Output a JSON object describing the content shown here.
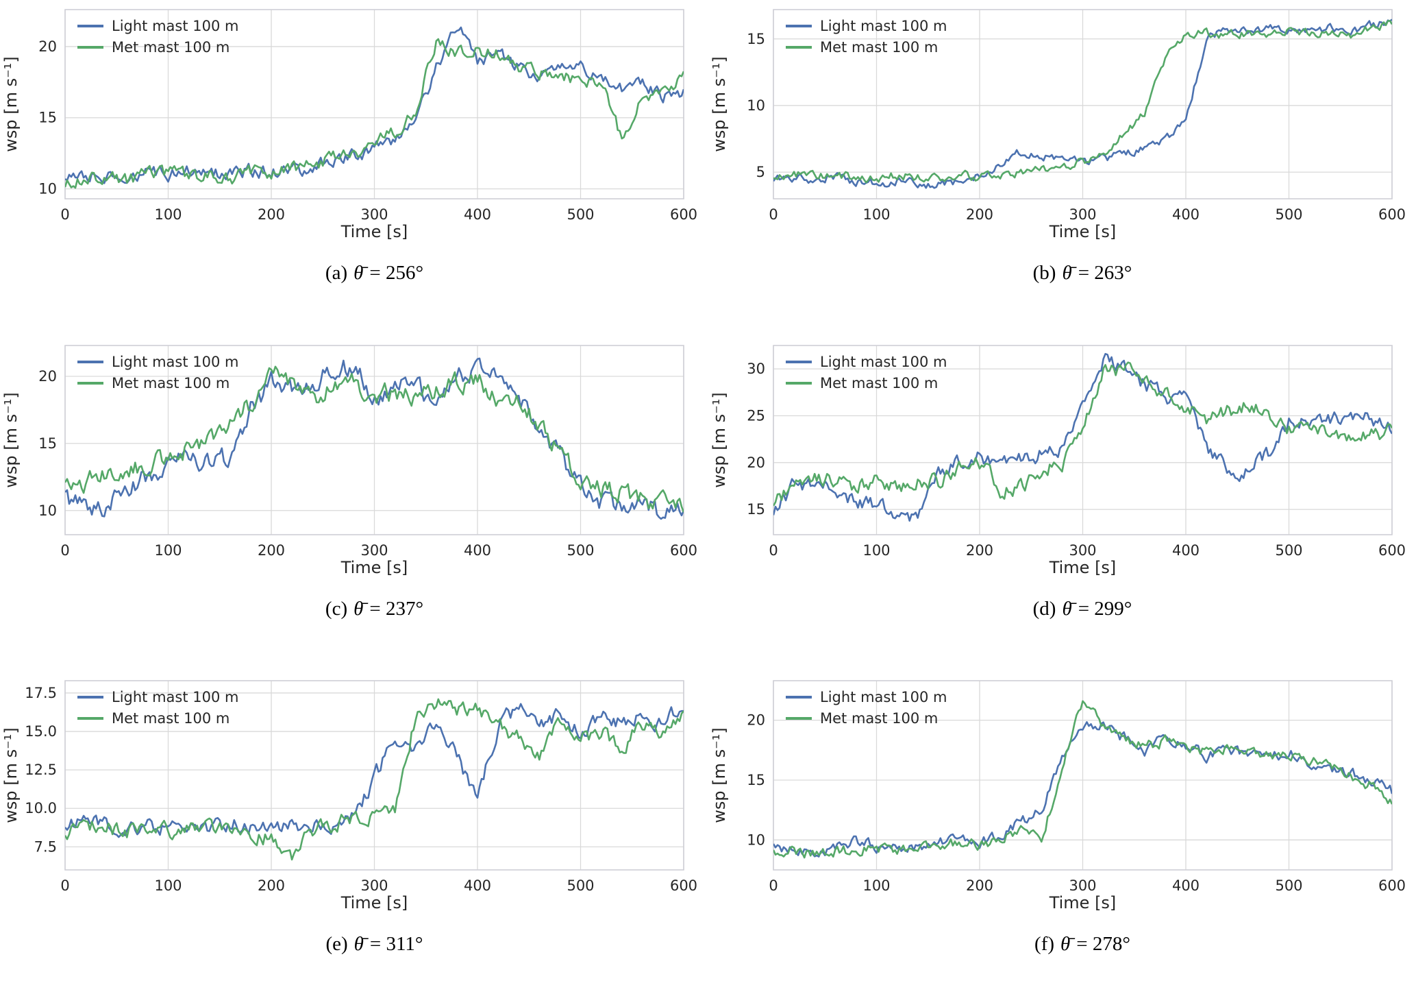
{
  "style": {
    "series_blue": "#4C72B0",
    "series_green": "#55A868",
    "grid_color": "#d9d9d9",
    "axis_color": "#cfcfd6",
    "text_color": "#262626"
  },
  "chart_data": [
    {
      "type": "line",
      "caption": {
        "label": "(a)",
        "symbol": "θ̄",
        "value": "= 256°"
      },
      "xlabel": "Time [s]",
      "ylabel": "wsp [m s⁻¹]",
      "xlim": [
        0,
        600
      ],
      "ylim": [
        9.3,
        22.6
      ],
      "xticks": [
        0,
        100,
        200,
        300,
        400,
        500,
        600
      ],
      "yticks": [
        10,
        15,
        20
      ],
      "ytick_labels": [
        "10",
        "15",
        "20"
      ],
      "legend_position": "upper left",
      "grid": true,
      "noise": 0.5,
      "x": [
        0,
        20,
        40,
        60,
        80,
        100,
        120,
        140,
        160,
        180,
        200,
        220,
        240,
        260,
        280,
        300,
        320,
        340,
        360,
        380,
        400,
        420,
        440,
        460,
        480,
        500,
        520,
        540,
        560,
        580,
        600
      ],
      "series": [
        {
          "name": "Light mast 100 m",
          "color": "#4C72B0",
          "values": [
            10.8,
            11.0,
            10.9,
            11.0,
            11.2,
            11.0,
            11.3,
            11.2,
            11.1,
            11.3,
            11.2,
            11.3,
            11.5,
            12.0,
            12.3,
            12.8,
            13.5,
            14.8,
            18.5,
            21.5,
            19.0,
            19.5,
            18.5,
            18.0,
            18.8,
            18.5,
            17.5,
            17.0,
            17.5,
            16.5,
            16.8
          ]
        },
        {
          "name": "Met mast 100 m",
          "color": "#55A868",
          "values": [
            10.5,
            10.7,
            10.8,
            10.6,
            11.0,
            11.1,
            10.9,
            11.0,
            10.7,
            11.2,
            11.1,
            11.4,
            11.6,
            12.2,
            12.5,
            13.2,
            14.0,
            15.5,
            20.5,
            19.5,
            19.8,
            19.5,
            18.5,
            18.2,
            18.0,
            17.5,
            17.8,
            13.5,
            16.5,
            17.0,
            17.8
          ]
        }
      ]
    },
    {
      "type": "line",
      "caption": {
        "label": "(b)",
        "symbol": "θ̄",
        "value": "= 263°"
      },
      "xlabel": "Time [s]",
      "ylabel": "wsp [m s⁻¹]",
      "xlim": [
        0,
        600
      ],
      "ylim": [
        3.0,
        17.2
      ],
      "xticks": [
        0,
        100,
        200,
        300,
        400,
        500,
        600
      ],
      "yticks": [
        5,
        10,
        15
      ],
      "ytick_labels": [
        "5",
        "10",
        "15"
      ],
      "legend_position": "upper left",
      "grid": true,
      "noise": 0.35,
      "x": [
        0,
        20,
        40,
        60,
        80,
        100,
        120,
        140,
        160,
        180,
        200,
        220,
        240,
        260,
        280,
        300,
        320,
        340,
        360,
        380,
        400,
        420,
        440,
        460,
        480,
        500,
        520,
        540,
        560,
        580,
        600
      ],
      "series": [
        {
          "name": "Light mast 100 m",
          "color": "#4C72B0",
          "values": [
            4.5,
            4.6,
            4.5,
            4.7,
            4.3,
            4.2,
            4.3,
            4.1,
            4.0,
            4.4,
            4.8,
            5.5,
            6.5,
            6.3,
            5.8,
            5.8,
            6.0,
            6.3,
            6.8,
            7.3,
            8.8,
            15.0,
            15.8,
            15.5,
            15.8,
            15.5,
            15.6,
            15.8,
            15.5,
            16.0,
            16.5
          ]
        },
        {
          "name": "Met mast 100 m",
          "color": "#55A868",
          "values": [
            4.8,
            4.9,
            4.7,
            4.8,
            4.6,
            4.5,
            4.8,
            4.6,
            4.5,
            4.9,
            4.6,
            4.8,
            5.0,
            5.2,
            5.5,
            5.8,
            6.5,
            7.8,
            9.5,
            13.5,
            15.3,
            15.5,
            15.2,
            15.5,
            15.3,
            15.5,
            15.4,
            15.5,
            15.2,
            15.8,
            16.2
          ]
        }
      ]
    },
    {
      "type": "line",
      "caption": {
        "label": "(c)",
        "symbol": "θ̄",
        "value": "= 237°"
      },
      "xlabel": "Time [s]",
      "ylabel": "wsp [m s⁻¹]",
      "xlim": [
        0,
        600
      ],
      "ylim": [
        8.2,
        22.3
      ],
      "xticks": [
        0,
        100,
        200,
        300,
        400,
        500,
        600
      ],
      "yticks": [
        10,
        15,
        20
      ],
      "ytick_labels": [
        "10",
        "15",
        "20"
      ],
      "legend_position": "upper left",
      "grid": true,
      "noise": 0.8,
      "x": [
        0,
        20,
        40,
        60,
        80,
        100,
        120,
        140,
        160,
        180,
        200,
        220,
        240,
        260,
        280,
        300,
        320,
        340,
        360,
        380,
        400,
        420,
        440,
        460,
        480,
        500,
        520,
        540,
        560,
        580,
        600
      ],
      "series": [
        {
          "name": "Light mast 100 m",
          "color": "#4C72B0",
          "values": [
            11.0,
            10.0,
            10.2,
            11.5,
            12.5,
            13.5,
            13.8,
            13.5,
            14.0,
            17.5,
            19.5,
            19.0,
            19.5,
            20.5,
            20.8,
            18.5,
            19.0,
            19.5,
            18.0,
            20.0,
            20.5,
            19.8,
            18.5,
            16.0,
            14.0,
            12.0,
            10.5,
            10.2,
            10.5,
            9.8,
            10.2
          ]
        },
        {
          "name": "Met mast 100 m",
          "color": "#55A868",
          "values": [
            12.5,
            12.0,
            12.8,
            13.0,
            13.5,
            14.0,
            14.5,
            15.5,
            16.5,
            18.0,
            20.5,
            19.5,
            18.5,
            19.0,
            19.5,
            18.5,
            18.8,
            18.5,
            18.8,
            19.5,
            19.8,
            18.5,
            18.0,
            16.5,
            14.5,
            12.5,
            11.5,
            11.2,
            10.8,
            10.5,
            10.3
          ]
        }
      ]
    },
    {
      "type": "line",
      "caption": {
        "label": "(d)",
        "symbol": "θ̄",
        "value": "= 299°"
      },
      "xlabel": "Time [s]",
      "ylabel": "wsp [m s⁻¹]",
      "xlim": [
        0,
        600
      ],
      "ylim": [
        12.3,
        32.5
      ],
      "xticks": [
        0,
        100,
        200,
        300,
        400,
        500,
        600
      ],
      "yticks": [
        15,
        20,
        25,
        30
      ],
      "ytick_labels": [
        "15",
        "20",
        "25",
        "30"
      ],
      "legend_position": "upper left",
      "grid": true,
      "noise": 0.9,
      "x": [
        0,
        20,
        40,
        60,
        80,
        100,
        120,
        140,
        160,
        180,
        200,
        220,
        240,
        260,
        280,
        300,
        320,
        340,
        360,
        380,
        400,
        420,
        440,
        460,
        480,
        500,
        520,
        540,
        560,
        580,
        600
      ],
      "series": [
        {
          "name": "Light mast 100 m",
          "color": "#4C72B0",
          "values": [
            15.0,
            17.5,
            18.0,
            17.0,
            16.0,
            15.5,
            14.5,
            14.0,
            19.0,
            20.0,
            20.5,
            20.0,
            20.5,
            21.0,
            21.5,
            27.0,
            31.0,
            30.0,
            28.5,
            27.0,
            26.5,
            21.5,
            19.5,
            19.0,
            21.0,
            24.5,
            25.0,
            24.5,
            25.0,
            24.5,
            24.0
          ]
        },
        {
          "name": "Met mast 100 m",
          "color": "#55A868",
          "values": [
            15.5,
            18.0,
            18.5,
            18.0,
            17.5,
            18.0,
            17.5,
            17.8,
            18.0,
            19.5,
            20.0,
            17.0,
            17.5,
            19.0,
            20.0,
            24.0,
            29.5,
            30.0,
            29.0,
            27.5,
            26.0,
            24.5,
            25.5,
            26.0,
            25.5,
            23.5,
            23.0,
            23.5,
            22.5,
            23.0,
            23.5
          ]
        }
      ]
    },
    {
      "type": "line",
      "caption": {
        "label": "(e)",
        "symbol": "θ̄",
        "value": "= 311°"
      },
      "xlabel": "Time [s]",
      "ylabel": "wsp [m s⁻¹]",
      "xlim": [
        0,
        600
      ],
      "ylim": [
        6.0,
        18.3
      ],
      "xticks": [
        0,
        100,
        200,
        300,
        400,
        500,
        600
      ],
      "yticks": [
        7.5,
        10.0,
        12.5,
        15.0,
        17.5
      ],
      "ytick_labels": [
        "7.5",
        "10.0",
        "12.5",
        "15.0",
        "17.5"
      ],
      "legend_position": "upper left",
      "grid": true,
      "noise": 0.55,
      "x": [
        0,
        20,
        40,
        60,
        80,
        100,
        120,
        140,
        160,
        180,
        200,
        220,
        240,
        260,
        280,
        300,
        320,
        340,
        360,
        380,
        400,
        420,
        440,
        460,
        480,
        500,
        520,
        540,
        560,
        580,
        600
      ],
      "series": [
        {
          "name": "Light mast 100 m",
          "color": "#4C72B0",
          "values": [
            8.8,
            9.5,
            9.0,
            8.8,
            9.0,
            8.8,
            8.5,
            8.8,
            9.0,
            8.8,
            8.7,
            8.8,
            9.0,
            8.8,
            9.5,
            12.0,
            14.5,
            14.0,
            15.5,
            13.5,
            10.5,
            15.5,
            16.5,
            15.5,
            16.0,
            15.0,
            16.0,
            15.5,
            16.0,
            15.5,
            17.0
          ]
        },
        {
          "name": "Met mast 100 m",
          "color": "#55A868",
          "values": [
            8.5,
            9.0,
            8.8,
            8.5,
            8.8,
            8.5,
            8.6,
            8.8,
            8.6,
            8.5,
            8.0,
            7.0,
            8.5,
            9.0,
            9.5,
            9.5,
            10.0,
            16.0,
            17.0,
            16.3,
            16.5,
            15.5,
            14.5,
            13.5,
            15.5,
            14.5,
            15.0,
            14.0,
            15.5,
            15.0,
            16.0
          ]
        }
      ]
    },
    {
      "type": "line",
      "caption": {
        "label": "(f)",
        "symbol": "θ̄",
        "value": "= 278°"
      },
      "xlabel": "Time [s]",
      "ylabel": "wsp [m s⁻¹]",
      "xlim": [
        0,
        600
      ],
      "ylim": [
        7.5,
        23.3
      ],
      "xticks": [
        0,
        100,
        200,
        300,
        400,
        500,
        600
      ],
      "yticks": [
        10,
        15,
        20
      ],
      "ytick_labels": [
        "10",
        "15",
        "20"
      ],
      "legend_position": "upper left",
      "grid": true,
      "noise": 0.5,
      "x": [
        0,
        20,
        40,
        60,
        80,
        100,
        120,
        140,
        160,
        180,
        200,
        220,
        240,
        260,
        280,
        300,
        320,
        340,
        360,
        380,
        400,
        420,
        440,
        460,
        480,
        500,
        520,
        540,
        560,
        580,
        600
      ],
      "series": [
        {
          "name": "Light mast 100 m",
          "color": "#4C72B0",
          "values": [
            9.5,
            9.2,
            9.0,
            9.3,
            10.0,
            9.5,
            9.3,
            9.5,
            9.8,
            10.0,
            9.8,
            10.5,
            11.5,
            12.5,
            17.0,
            19.5,
            19.8,
            18.5,
            17.5,
            18.5,
            18.0,
            17.0,
            17.5,
            17.2,
            17.0,
            17.3,
            16.5,
            16.0,
            15.5,
            15.0,
            14.0
          ]
        },
        {
          "name": "Met mast 100 m",
          "color": "#55A868",
          "values": [
            9.2,
            9.0,
            8.8,
            9.0,
            9.2,
            9.3,
            9.2,
            9.4,
            9.8,
            9.6,
            9.5,
            10.0,
            11.0,
            10.0,
            16.0,
            21.5,
            19.5,
            18.5,
            18.0,
            18.2,
            17.5,
            17.3,
            17.8,
            17.5,
            17.0,
            17.2,
            16.8,
            16.2,
            15.5,
            14.5,
            13.0
          ]
        }
      ]
    }
  ]
}
